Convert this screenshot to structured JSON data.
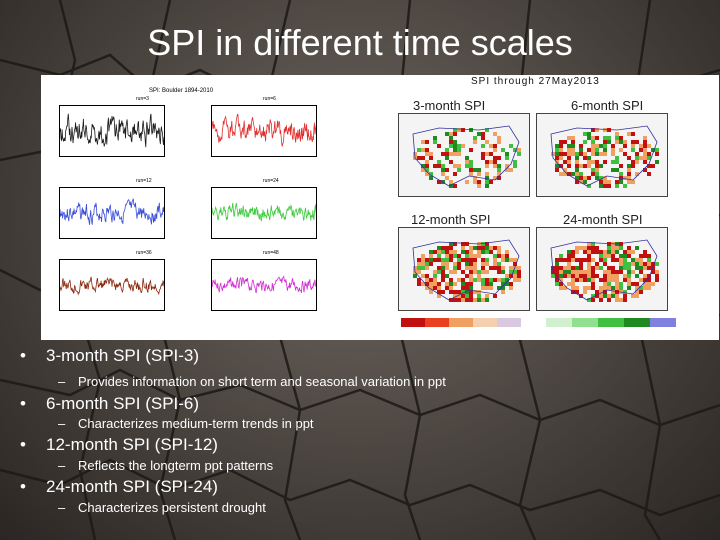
{
  "slide": {
    "title": "SPI in different time scales"
  },
  "figure": {
    "timeseries_title": "SPI: Boulder 1894-2010",
    "map_header": "SPI through 27May2013",
    "run_labels": [
      "run=3",
      "run=6",
      "run=12",
      "run=24",
      "run=36",
      "run=48"
    ],
    "map_titles": [
      "3-month SPI",
      "6-month SPI",
      "12-month SPI",
      "24-month SPI"
    ],
    "colors": {
      "black": "#1a1a1a",
      "red": "#e03030",
      "blue": "#3a4fd8",
      "green": "#3ec93e",
      "brown": "#8b2a10",
      "magenta": "#d030d0",
      "dry_dark": "#b01010",
      "wet_dark": "#1f7a1f"
    }
  },
  "bullets": [
    {
      "label": "3-month SPI (SPI-3)",
      "sub": "Provides information on short term and seasonal variation in ppt"
    },
    {
      "label": "6-month SPI (SPI-6)",
      "sub": "Characterizes medium-term trends in ppt"
    },
    {
      "label": "12-month SPI (SPI-12)",
      "sub": "Reflects the longterm ppt patterns"
    },
    {
      "label": "24-month SPI (SPI-24)",
      "sub": "Characterizes persistent drought"
    }
  ]
}
